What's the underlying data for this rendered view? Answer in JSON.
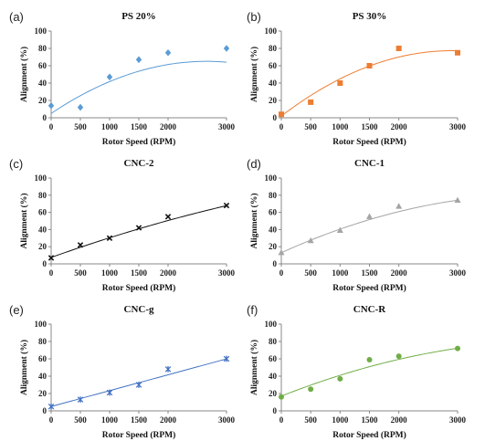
{
  "chart_data": [
    {
      "type": "scatter",
      "panel": "(a)",
      "title": "PS 20%",
      "xlabel": "Rotor Speed (RPM)",
      "ylabel": "Alignment (%)",
      "xlim": [
        0,
        3000
      ],
      "ylim": [
        0,
        100
      ],
      "xticks": [
        "0",
        "500",
        "1000",
        "1500",
        "2000",
        "3000"
      ],
      "yticks": [
        "0",
        "20",
        "40",
        "60",
        "80",
        "100"
      ],
      "marker": "diamond",
      "color": "#5b9bd5",
      "x": [
        0,
        500,
        1000,
        1500,
        2000,
        3000
      ],
      "y": [
        14,
        12,
        47,
        67,
        75,
        80
      ],
      "trend": [
        5,
        0.0452,
        -8.5e-06
      ]
    },
    {
      "type": "scatter",
      "panel": "(b)",
      "title": "PS 30%",
      "xlabel": "Rotor Speed (RPM)",
      "ylabel": "Alignment (%)",
      "xlim": [
        0,
        3000
      ],
      "ylim": [
        0,
        100
      ],
      "xticks": [
        "0",
        "500",
        "1000",
        "1500",
        "2000",
        "3000"
      ],
      "yticks": [
        "0",
        "20",
        "40",
        "60",
        "80",
        "100"
      ],
      "marker": "square",
      "color": "#ed7d31",
      "x": [
        0,
        500,
        1000,
        1500,
        2000,
        3000
      ],
      "y": [
        4,
        18,
        40,
        60,
        80,
        75
      ],
      "trend": [
        2,
        0.0518,
        -8.9e-06
      ]
    },
    {
      "type": "scatter",
      "panel": "(c)",
      "title": "CNC-2",
      "xlabel": "Rotor Speed (RPM)",
      "ylabel": "Alignment (%)",
      "xlim": [
        0,
        3000
      ],
      "ylim": [
        0,
        100
      ],
      "xticks": [
        "0",
        "500",
        "1000",
        "1500",
        "2000",
        "3000"
      ],
      "yticks": [
        "0",
        "20",
        "40",
        "60",
        "80",
        "100"
      ],
      "marker": "x",
      "color": "#111111",
      "x": [
        0,
        500,
        1000,
        1500,
        2000,
        3000
      ],
      "y": [
        7,
        22,
        30,
        42,
        55,
        68
      ],
      "trend": [
        7.5,
        0.0243,
        -1.4e-06
      ]
    },
    {
      "type": "scatter",
      "panel": "(d)",
      "title": "CNC-1",
      "xlabel": "Rotor Speed (RPM)",
      "ylabel": "Alignment (%)",
      "xlim": [
        0,
        3000
      ],
      "ylim": [
        0,
        100
      ],
      "xticks": [
        "0",
        "500",
        "1000",
        "1500",
        "2000",
        "3000"
      ],
      "yticks": [
        "0",
        "20",
        "40",
        "60",
        "80",
        "100"
      ],
      "marker": "triangle",
      "color": "#a5a5a5",
      "x": [
        0,
        500,
        1000,
        1500,
        2000,
        3000
      ],
      "y": [
        13,
        27,
        39,
        55,
        67,
        74
      ],
      "trend": [
        13,
        0.031,
        -3.533e-06
      ]
    },
    {
      "type": "scatter",
      "panel": "(e)",
      "title": "CNC-g",
      "xlabel": "Rotor Speed (RPM)",
      "ylabel": "Alignment (%)",
      "xlim": [
        0,
        3000
      ],
      "ylim": [
        0,
        100
      ],
      "xticks": [
        "0",
        "500",
        "1000",
        "1500",
        "2000",
        "3000"
      ],
      "yticks": [
        "0",
        "20",
        "40",
        "60",
        "80",
        "100"
      ],
      "marker": "asterisk",
      "color": "#4472c4",
      "x": [
        0,
        500,
        1000,
        1500,
        2000,
        3000
      ],
      "y": [
        5,
        13,
        21,
        30,
        48,
        60
      ],
      "trend": [
        5,
        0.0183,
        0
      ]
    },
    {
      "type": "scatter",
      "panel": "(f)",
      "title": "CNC-R",
      "xlabel": "Rotor Speed (RPM)",
      "ylabel": "Alignment (%)",
      "xlim": [
        0,
        3000
      ],
      "ylim": [
        0,
        100
      ],
      "xticks": [
        "0",
        "500",
        "1000",
        "1500",
        "2000",
        "3000"
      ],
      "yticks": [
        "0",
        "20",
        "40",
        "60",
        "80",
        "100"
      ],
      "marker": "circle",
      "color": "#70ad47",
      "x": [
        0,
        500,
        1000,
        1500,
        2000,
        3000
      ],
      "y": [
        16,
        25,
        37,
        59,
        63,
        72
      ],
      "trend": [
        17,
        0.0268,
        -2.8e-06
      ]
    }
  ]
}
